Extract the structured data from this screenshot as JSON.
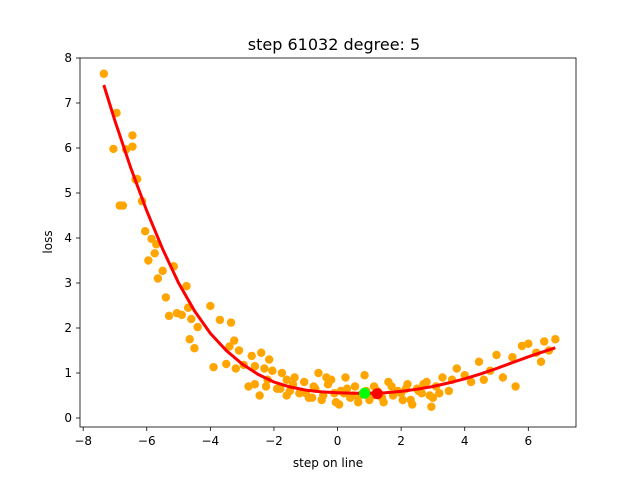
{
  "chart_data": {
    "type": "scatter",
    "title": "step 61032   degree: 5",
    "xlabel": "step on line",
    "ylabel": "loss",
    "xlim": [
      -8.1,
      7.5
    ],
    "ylim": [
      -0.2,
      8.0
    ],
    "xticks": [
      -8,
      -6,
      -4,
      -2,
      0,
      2,
      4,
      6
    ],
    "yticks": [
      0,
      1,
      2,
      3,
      4,
      5,
      6,
      7,
      8
    ],
    "grid": false,
    "colors": {
      "points": "#ffa500",
      "fit": "#ff0000",
      "marker_green": "#00ff00",
      "marker_red": "#ff0000"
    },
    "series": [
      {
        "kind": "points",
        "x": [
          -7.35,
          -7.05,
          -6.95,
          -6.85,
          -6.75,
          -6.65,
          -6.45,
          -6.45,
          -6.35,
          -6.3,
          -6.15,
          -6.05,
          -5.95,
          -5.85,
          -5.75,
          -5.7,
          -5.65,
          -5.5,
          -5.4,
          -5.3,
          -5.15,
          -5.05,
          -4.9,
          -4.75,
          -4.7,
          -4.65,
          -4.6,
          -4.5,
          -4.4,
          -4.0,
          -3.9,
          -3.7,
          -3.5,
          -3.4,
          -3.35,
          -3.25,
          -3.2,
          -3.1,
          -2.95,
          -2.8,
          -2.7,
          -2.6,
          -2.45,
          -2.4,
          -2.3,
          -2.25,
          -2.15,
          -2.05,
          -1.9,
          -1.75,
          -1.6,
          -1.5,
          -1.35,
          -1.2,
          -1.05,
          -0.9,
          -0.75,
          -0.6,
          -0.45,
          -0.3,
          -0.2,
          -0.05,
          0.1,
          0.25,
          0.4,
          0.55,
          0.7,
          0.85,
          1.0,
          1.15,
          1.3,
          1.45,
          1.6,
          1.75,
          1.9,
          2.05,
          2.2,
          2.35,
          2.5,
          2.65,
          2.8,
          2.95,
          3.1,
          3.3,
          3.5,
          3.75,
          4.0,
          4.2,
          4.45,
          4.6,
          4.8,
          5.0,
          5.2,
          5.5,
          5.6,
          5.8,
          6.0,
          6.25,
          6.4,
          6.5,
          6.65,
          6.85,
          -2.2,
          -1.8,
          -1.4,
          -1.0,
          -0.7,
          -0.5,
          -0.35,
          -0.1,
          0.05,
          0.3,
          0.5,
          0.65,
          0.9,
          1.1,
          1.4,
          1.7,
          2.0,
          2.3,
          2.55,
          2.7,
          3.0,
          3.2,
          -2.6,
          -1.6,
          -0.8,
          0.2,
          1.25,
          2.15,
          2.9,
          3.6
        ],
        "y": [
          7.65,
          5.98,
          6.78,
          4.72,
          4.72,
          5.97,
          6.03,
          6.28,
          5.3,
          5.31,
          4.82,
          4.15,
          3.5,
          3.98,
          3.66,
          3.86,
          3.1,
          3.27,
          2.68,
          2.27,
          3.37,
          2.33,
          2.29,
          2.93,
          2.45,
          1.75,
          2.2,
          1.55,
          2.02,
          2.49,
          1.13,
          2.18,
          1.2,
          1.59,
          2.12,
          1.72,
          1.1,
          1.5,
          1.18,
          0.7,
          1.38,
          1.15,
          0.5,
          1.45,
          1.1,
          0.7,
          1.3,
          1.05,
          0.65,
          1.0,
          0.85,
          0.6,
          0.9,
          0.55,
          0.8,
          0.45,
          0.7,
          1.0,
          0.5,
          0.75,
          0.85,
          0.35,
          0.6,
          0.9,
          0.45,
          0.7,
          0.5,
          0.95,
          0.4,
          0.7,
          0.55,
          0.35,
          0.8,
          0.5,
          0.6,
          0.4,
          0.75,
          0.3,
          0.65,
          0.55,
          0.8,
          0.25,
          0.7,
          0.9,
          0.6,
          1.1,
          0.95,
          0.8,
          1.25,
          0.85,
          1.05,
          1.4,
          0.9,
          1.35,
          0.7,
          1.6,
          1.65,
          1.45,
          1.25,
          1.7,
          1.5,
          1.75,
          0.85,
          0.65,
          0.75,
          0.55,
          0.65,
          0.4,
          0.9,
          0.55,
          0.3,
          0.65,
          0.5,
          0.35,
          0.6,
          0.5,
          0.45,
          0.7,
          0.55,
          0.4,
          0.6,
          0.75,
          0.45,
          0.55,
          0.75,
          0.5,
          0.45,
          0.55,
          0.6,
          0.65,
          0.5,
          0.85
        ]
      },
      {
        "kind": "fit",
        "x": [
          -7.35,
          -7.0,
          -6.5,
          -6.0,
          -5.5,
          -5.0,
          -4.5,
          -4.0,
          -3.5,
          -3.0,
          -2.5,
          -2.0,
          -1.5,
          -1.0,
          -0.5,
          0.0,
          0.5,
          1.0,
          1.5,
          2.0,
          2.5,
          3.0,
          3.5,
          4.0,
          4.5,
          5.0,
          5.5,
          6.0,
          6.5,
          6.85
        ],
        "y": [
          7.4,
          6.6,
          5.55,
          4.6,
          3.75,
          3.0,
          2.38,
          1.88,
          1.5,
          1.2,
          0.97,
          0.8,
          0.69,
          0.62,
          0.58,
          0.56,
          0.55,
          0.55,
          0.56,
          0.59,
          0.64,
          0.7,
          0.78,
          0.87,
          0.98,
          1.1,
          1.23,
          1.36,
          1.48,
          1.56
        ]
      },
      {
        "kind": "marker",
        "color": "green",
        "x": [
          0.85
        ],
        "y": [
          0.55
        ]
      },
      {
        "kind": "marker",
        "color": "red",
        "x": [
          1.25
        ],
        "y": [
          0.54
        ]
      }
    ]
  }
}
